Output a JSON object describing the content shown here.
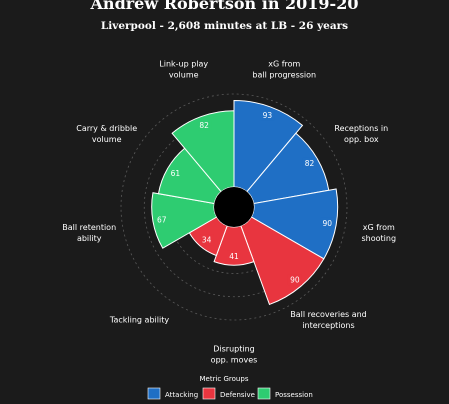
{
  "header": {
    "title": "Andrew Robertson in 2019-20",
    "subtitle": "Liverpool - 2,608 minutes at LB - 26 years"
  },
  "chart_data": {
    "type": "polar-bar",
    "scale": [
      0,
      100
    ],
    "grid": true,
    "metrics": [
      {
        "label": [
          "xG from",
          "ball progression"
        ],
        "value": 93,
        "group": "Attacking"
      },
      {
        "label": [
          "Receptions in",
          "opp. box"
        ],
        "value": 82,
        "group": "Attacking"
      },
      {
        "label": [
          "xG from",
          "shooting"
        ],
        "value": 90,
        "group": "Attacking"
      },
      {
        "label": [
          "Ball recoveries and",
          "interceptions"
        ],
        "value": 90,
        "group": "Defensive"
      },
      {
        "label": [
          "Disrupting",
          "opp. moves"
        ],
        "value": 41,
        "group": "Defensive"
      },
      {
        "label": [
          "Tackling ability"
        ],
        "value": 34,
        "group": "Defensive"
      },
      {
        "label": [
          "Ball retention",
          "ability"
        ],
        "value": 67,
        "group": "Possession"
      },
      {
        "label": [
          "Carry & dribble",
          "volume"
        ],
        "value": 61,
        "group": "Possession"
      },
      {
        "label": [
          "Link-up play",
          "volume"
        ],
        "value": 82,
        "group": "Possession"
      }
    ],
    "legend": {
      "title": "Metric Groups",
      "placement": "bottom",
      "items": [
        {
          "name": "Attacking",
          "color": "#1f6fc5"
        },
        {
          "name": "Defensive",
          "color": "#e8353f"
        },
        {
          "name": "Possession",
          "color": "#2ecc71"
        }
      ]
    }
  }
}
